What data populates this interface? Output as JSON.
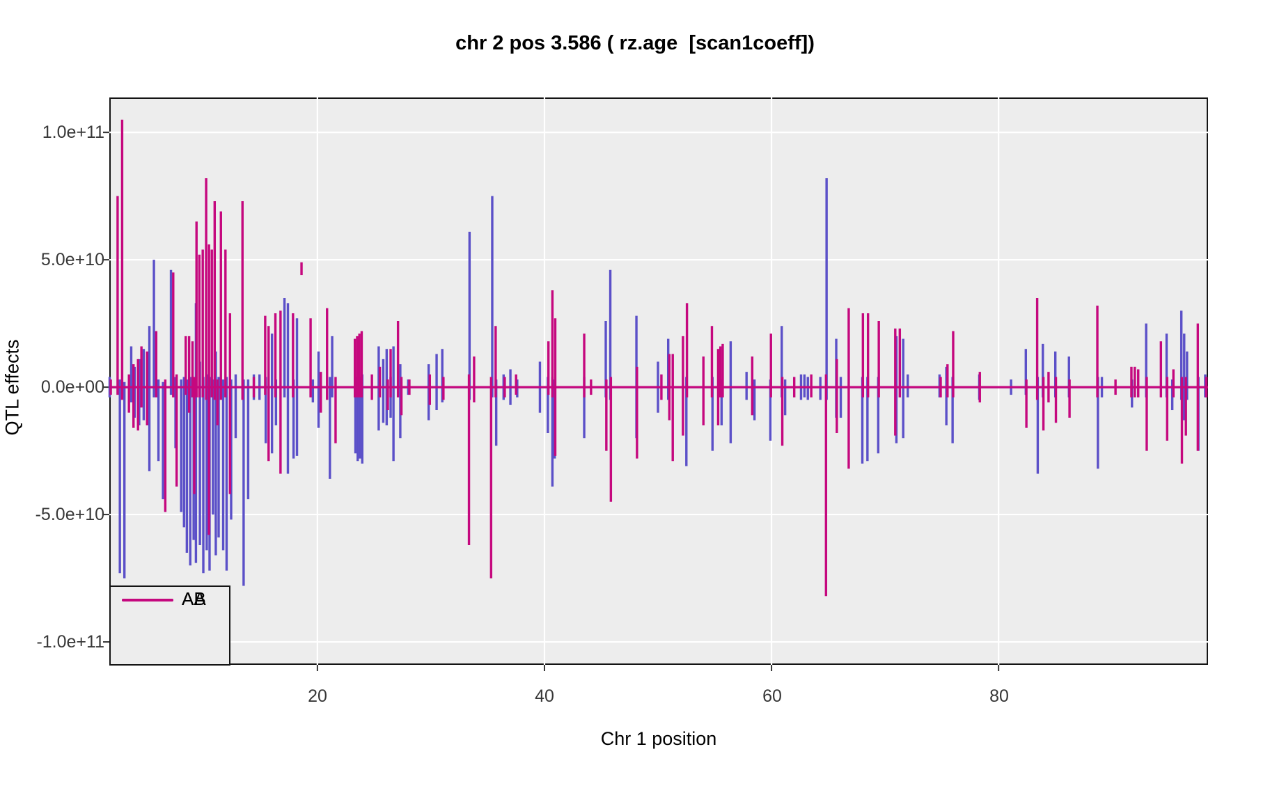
{
  "chart_data": {
    "type": "line",
    "title": "chr 2 pos 3.586 ( rz.age  [scan1coeff])",
    "xlabel": "Chr 1 position",
    "ylabel": "QTL effects",
    "xlim": [
      1.67,
      98.45
    ],
    "ylim": [
      -109000000000.0,
      113700000000.0
    ],
    "x_ticks": [
      20,
      40,
      60,
      80
    ],
    "x_tick_labels": [
      "20",
      "40",
      "60",
      "80"
    ],
    "y_ticks": [
      100000000000.0,
      50000000000.0,
      0,
      -50000000000.0,
      -100000000000.0
    ],
    "y_tick_labels": [
      "1.0e+11",
      "5.0e+10",
      "0.0e+00",
      "-5.0e+10",
      "-1.0e+11"
    ],
    "grid": "major-white-on-gray",
    "panel_bg": "#ededed",
    "grid_color": "#ffffff",
    "legend": {
      "position": "bottom-left-inside",
      "entries": [
        {
          "label": "AA",
          "color": "#5b50c8"
        },
        {
          "label": "AB",
          "color": "#c5087e"
        }
      ]
    },
    "value_multiplier": 1000000000.0,
    "series": [
      {
        "name": "AA",
        "color": "#5b50c8",
        "baseline": 0,
        "spikes": [
          [
            1.7,
            -4,
            4
          ],
          [
            2.6,
            -73,
            3
          ],
          [
            3.0,
            -75,
            2
          ],
          [
            3.6,
            -6,
            16
          ],
          [
            3.9,
            -12,
            8
          ],
          [
            4.3,
            -15,
            11
          ],
          [
            4.7,
            -13,
            15
          ],
          [
            5.2,
            -33,
            24
          ],
          [
            5.6,
            -4,
            50
          ],
          [
            6.0,
            -29,
            3
          ],
          [
            6.4,
            -44,
            2
          ],
          [
            7.1,
            -3,
            46
          ],
          [
            7.5,
            -24,
            4
          ],
          [
            8.0,
            -49,
            3
          ],
          [
            8.25,
            -55,
            4
          ],
          [
            8.5,
            -65,
            3
          ],
          [
            8.8,
            -70,
            4
          ],
          [
            9.1,
            -60,
            3
          ],
          [
            9.3,
            -69,
            33
          ],
          [
            9.65,
            -62,
            10
          ],
          [
            9.95,
            -73,
            4
          ],
          [
            10.25,
            -64,
            5
          ],
          [
            10.5,
            -72,
            4
          ],
          [
            10.8,
            -50,
            3
          ],
          [
            11.05,
            -66,
            14
          ],
          [
            11.3,
            -59,
            4
          ],
          [
            11.7,
            -64,
            3
          ],
          [
            12.0,
            -72,
            4
          ],
          [
            12.4,
            -52,
            3
          ],
          [
            12.8,
            -20,
            5
          ],
          [
            13.5,
            -78,
            3
          ],
          [
            13.9,
            -44,
            3
          ],
          [
            14.4,
            -5,
            5
          ],
          [
            14.9,
            -5,
            5
          ],
          [
            15.45,
            -22,
            4
          ],
          [
            16.0,
            -26,
            21
          ],
          [
            16.35,
            -15,
            3
          ],
          [
            17.1,
            -4,
            35
          ],
          [
            17.4,
            -34,
            33
          ],
          [
            17.9,
            -28,
            3
          ],
          [
            18.2,
            -27,
            27
          ],
          [
            19.6,
            -6,
            3
          ],
          [
            20.1,
            -16,
            14
          ],
          [
            21.1,
            -36,
            4
          ],
          [
            21.3,
            -4,
            20
          ],
          [
            23.35,
            -26,
            4
          ],
          [
            23.55,
            -29,
            5
          ],
          [
            23.75,
            -28,
            4
          ],
          [
            23.95,
            -30,
            5
          ],
          [
            25.4,
            -17,
            16
          ],
          [
            25.8,
            -14,
            11
          ],
          [
            26.1,
            -15,
            15
          ],
          [
            26.45,
            -12,
            4
          ],
          [
            26.7,
            -29,
            16
          ],
          [
            27.3,
            -20,
            9
          ],
          [
            28.0,
            -3,
            3
          ],
          [
            29.8,
            -13,
            9
          ],
          [
            30.5,
            -9,
            13
          ],
          [
            31.0,
            -6,
            15
          ],
          [
            33.4,
            -5,
            61
          ],
          [
            35.4,
            -4,
            75
          ],
          [
            35.75,
            -23,
            3
          ],
          [
            36.4,
            -5,
            5
          ],
          [
            37.0,
            -7,
            7
          ],
          [
            37.6,
            -4,
            3
          ],
          [
            39.6,
            -10,
            10
          ],
          [
            40.3,
            -18,
            4
          ],
          [
            40.7,
            -39,
            4
          ],
          [
            40.9,
            -28,
            3
          ],
          [
            43.5,
            -20,
            4
          ],
          [
            45.4,
            -4,
            26
          ],
          [
            45.8,
            -5,
            46
          ],
          [
            48.1,
            -20,
            28
          ],
          [
            50.0,
            -10,
            10
          ],
          [
            50.9,
            -5,
            19
          ],
          [
            52.5,
            -31,
            4
          ],
          [
            54.8,
            -25,
            4
          ],
          [
            55.6,
            -15,
            3
          ],
          [
            56.4,
            -22,
            18
          ],
          [
            57.8,
            -5,
            6
          ],
          [
            58.5,
            -13,
            3
          ],
          [
            59.9,
            -21,
            3
          ],
          [
            60.9,
            -4,
            24
          ],
          [
            61.2,
            -11,
            3
          ],
          [
            62.6,
            -5,
            5
          ],
          [
            62.9,
            -4,
            5
          ],
          [
            63.2,
            -5,
            4
          ],
          [
            64.3,
            -5,
            4
          ],
          [
            64.85,
            -5,
            82
          ],
          [
            65.7,
            -12,
            19
          ],
          [
            66.1,
            -12,
            4
          ],
          [
            68.0,
            -30,
            4
          ],
          [
            68.45,
            -29,
            4
          ],
          [
            69.4,
            -26,
            4
          ],
          [
            71.0,
            -22,
            20
          ],
          [
            71.6,
            -20,
            19
          ],
          [
            72.0,
            -4,
            5
          ],
          [
            74.8,
            -4,
            5
          ],
          [
            75.4,
            -15,
            8
          ],
          [
            75.95,
            -22,
            4
          ],
          [
            78.3,
            -5,
            5
          ],
          [
            81.1,
            -3,
            3
          ],
          [
            82.4,
            -3,
            15
          ],
          [
            83.45,
            -34,
            4
          ],
          [
            83.9,
            -4,
            17
          ],
          [
            85.0,
            -4,
            14
          ],
          [
            86.2,
            -4,
            12
          ],
          [
            88.75,
            -32,
            4
          ],
          [
            89.1,
            -4,
            4
          ],
          [
            91.75,
            -8,
            3
          ],
          [
            93.0,
            -4,
            25
          ],
          [
            94.8,
            -4,
            21
          ],
          [
            95.3,
            -9,
            3
          ],
          [
            96.1,
            -5,
            30
          ],
          [
            96.35,
            -13,
            21
          ],
          [
            96.6,
            -5,
            14
          ],
          [
            97.6,
            -25,
            4
          ],
          [
            98.2,
            -4,
            5
          ]
        ]
      },
      {
        "name": "AB",
        "color": "#c5087e",
        "baseline": 0,
        "spikes": [
          [
            1.8,
            -3,
            3
          ],
          [
            2.4,
            -3,
            75
          ],
          [
            2.8,
            -5,
            105
          ],
          [
            3.4,
            -10,
            5
          ],
          [
            3.8,
            -16,
            9
          ],
          [
            4.2,
            -17,
            11
          ],
          [
            4.5,
            -8,
            16
          ],
          [
            5.0,
            -15,
            14
          ],
          [
            5.8,
            -4,
            22
          ],
          [
            6.6,
            -49,
            3
          ],
          [
            7.3,
            -4,
            45
          ],
          [
            7.6,
            -39,
            5
          ],
          [
            8.4,
            -3,
            20
          ],
          [
            8.7,
            -10,
            20
          ],
          [
            9.0,
            -4,
            18
          ],
          [
            9.15,
            -42,
            4
          ],
          [
            9.35,
            -4,
            65
          ],
          [
            9.6,
            -4,
            52
          ],
          [
            9.9,
            -4,
            54
          ],
          [
            10.2,
            -5,
            82
          ],
          [
            10.45,
            -58,
            56
          ],
          [
            10.7,
            -4,
            54
          ],
          [
            10.95,
            -5,
            73
          ],
          [
            11.2,
            -15,
            3
          ],
          [
            11.5,
            -5,
            69
          ],
          [
            11.9,
            -4,
            54
          ],
          [
            12.3,
            -42,
            29
          ],
          [
            13.4,
            -5,
            73
          ],
          [
            14.4,
            -4,
            4
          ],
          [
            15.4,
            -3,
            28
          ],
          [
            15.7,
            -29,
            24
          ],
          [
            16.3,
            -4,
            29
          ],
          [
            16.75,
            -34,
            30
          ],
          [
            17.85,
            -4,
            29
          ],
          [
            18.6,
            44,
            49
          ],
          [
            19.4,
            -4,
            27
          ],
          [
            20.3,
            -10,
            6
          ],
          [
            20.85,
            -5,
            31
          ],
          [
            21.6,
            -22,
            4
          ],
          [
            23.3,
            -4,
            19
          ],
          [
            23.5,
            -4,
            20
          ],
          [
            23.7,
            -4,
            21
          ],
          [
            23.9,
            -4,
            22
          ],
          [
            24.8,
            -5,
            5
          ],
          [
            25.5,
            -4,
            8
          ],
          [
            26.2,
            -9,
            3
          ],
          [
            26.45,
            -4,
            15
          ],
          [
            27.1,
            -4,
            26
          ],
          [
            27.4,
            -11,
            4
          ],
          [
            28.1,
            -3,
            3
          ],
          [
            29.9,
            -7,
            5
          ],
          [
            31.1,
            -5,
            4
          ],
          [
            33.35,
            -62,
            5
          ],
          [
            33.8,
            -6,
            12
          ],
          [
            35.3,
            -75,
            4
          ],
          [
            35.7,
            -4,
            24
          ],
          [
            36.5,
            -4,
            4
          ],
          [
            37.5,
            -3,
            5
          ],
          [
            40.35,
            -3,
            18
          ],
          [
            40.7,
            -4,
            38
          ],
          [
            40.95,
            -27,
            27
          ],
          [
            43.5,
            -4,
            21
          ],
          [
            44.1,
            -3,
            3
          ],
          [
            45.45,
            -25,
            3
          ],
          [
            45.85,
            -45,
            4
          ],
          [
            48.15,
            -28,
            8
          ],
          [
            50.3,
            -5,
            5
          ],
          [
            51.0,
            -13,
            13
          ],
          [
            51.3,
            -29,
            13
          ],
          [
            52.2,
            -19,
            20
          ],
          [
            52.55,
            -4,
            33
          ],
          [
            54.0,
            -15,
            12
          ],
          [
            54.75,
            -4,
            24
          ],
          [
            55.3,
            -15,
            15
          ],
          [
            55.5,
            -4,
            16
          ],
          [
            55.7,
            -4,
            17
          ],
          [
            58.3,
            -11,
            12
          ],
          [
            59.95,
            -4,
            21
          ],
          [
            60.95,
            -23,
            4
          ],
          [
            62.0,
            -4,
            4
          ],
          [
            63.5,
            -4,
            5
          ],
          [
            64.8,
            -82,
            5
          ],
          [
            65.75,
            -18,
            11
          ],
          [
            66.8,
            -32,
            31
          ],
          [
            68.05,
            -4,
            29
          ],
          [
            68.5,
            -4,
            29
          ],
          [
            69.45,
            -4,
            26
          ],
          [
            70.9,
            -19,
            23
          ],
          [
            71.3,
            -4,
            23
          ],
          [
            74.9,
            -4,
            4
          ],
          [
            75.5,
            -4,
            9
          ],
          [
            76.0,
            -4,
            22
          ],
          [
            78.35,
            -6,
            6
          ],
          [
            82.45,
            -16,
            3
          ],
          [
            83.4,
            -5,
            35
          ],
          [
            83.95,
            -17,
            4
          ],
          [
            84.4,
            -6,
            6
          ],
          [
            85.05,
            -14,
            4
          ],
          [
            86.25,
            -12,
            3
          ],
          [
            88.7,
            -4,
            32
          ],
          [
            90.3,
            -3,
            3
          ],
          [
            91.7,
            -4,
            8
          ],
          [
            92.0,
            -4,
            8
          ],
          [
            92.3,
            -4,
            7
          ],
          [
            93.05,
            -25,
            4
          ],
          [
            94.3,
            -4,
            18
          ],
          [
            94.85,
            -21,
            4
          ],
          [
            95.4,
            -4,
            7
          ],
          [
            96.15,
            -30,
            4
          ],
          [
            96.5,
            -19,
            4
          ],
          [
            97.55,
            -25,
            25
          ],
          [
            98.3,
            -4,
            4
          ]
        ]
      }
    ]
  }
}
